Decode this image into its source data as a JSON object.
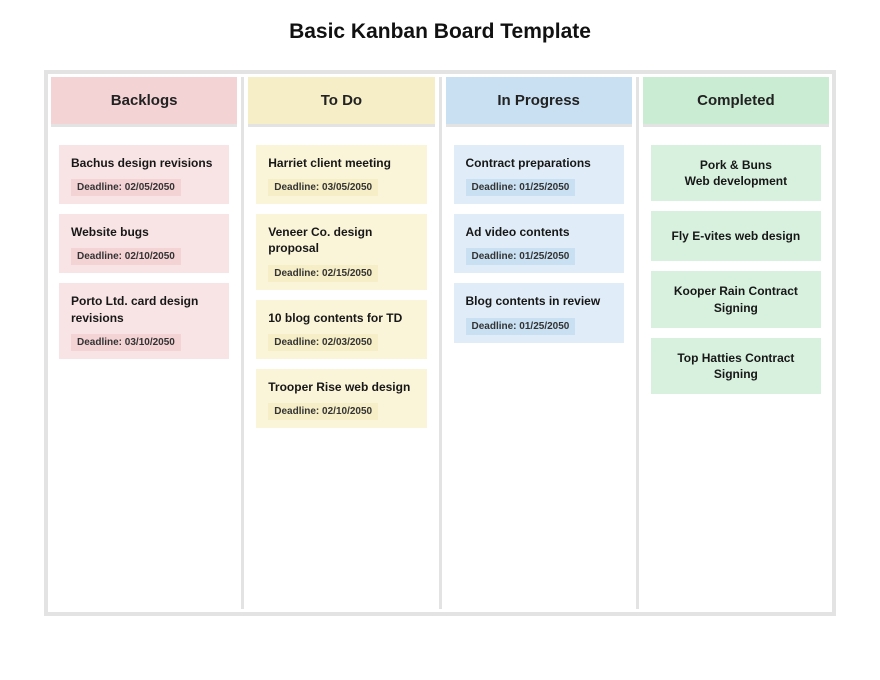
{
  "title": "Basic Kanban Board Template",
  "colors": {
    "board_border": "#e3e3e3",
    "backlogs_header": "#f4d3d5",
    "backlogs_card": "#f9e4e5",
    "backlogs_deadline": "#f4d3d5",
    "todo_header": "#f6eec6",
    "todo_card": "#faf4d8",
    "todo_deadline": "#f6eec6",
    "inprogress_header": "#c9e0f2",
    "inprogress_card": "#e0edf8",
    "inprogress_deadline": "#c9e0f2",
    "completed_header": "#c9ecd2",
    "completed_card": "#d8f1de"
  },
  "columns": [
    {
      "name": "Backlogs",
      "cards": [
        {
          "title": "Bachus design revisions",
          "deadline": "Deadline: 02/05/2050"
        },
        {
          "title": "Website bugs",
          "deadline": "Deadline: 02/10/2050"
        },
        {
          "title": "Porto Ltd. card design revisions",
          "deadline": "Deadline: 03/10/2050"
        }
      ]
    },
    {
      "name": "To Do",
      "cards": [
        {
          "title": "Harriet client meeting",
          "deadline": "Deadline: 03/05/2050"
        },
        {
          "title": "Veneer Co. design proposal",
          "deadline": "Deadline: 02/15/2050"
        },
        {
          "title": "10 blog contents for TD",
          "deadline": "Deadline: 02/03/2050"
        },
        {
          "title": "Trooper Rise web design",
          "deadline": "Deadline: 02/10/2050"
        }
      ]
    },
    {
      "name": "In Progress",
      "cards": [
        {
          "title": "Contract preparations",
          "deadline": "Deadline: 01/25/2050"
        },
        {
          "title": "Ad video contents",
          "deadline": "Deadline: 01/25/2050"
        },
        {
          "title": "Blog contents in review",
          "deadline": "Deadline: 01/25/2050"
        }
      ]
    },
    {
      "name": "Completed",
      "cards": [
        {
          "title": "Pork & Buns\nWeb development"
        },
        {
          "title": "Fly E-vites web design"
        },
        {
          "title": "Kooper Rain Contract Signing"
        },
        {
          "title": "Top Hatties Contract Signing"
        }
      ]
    }
  ]
}
